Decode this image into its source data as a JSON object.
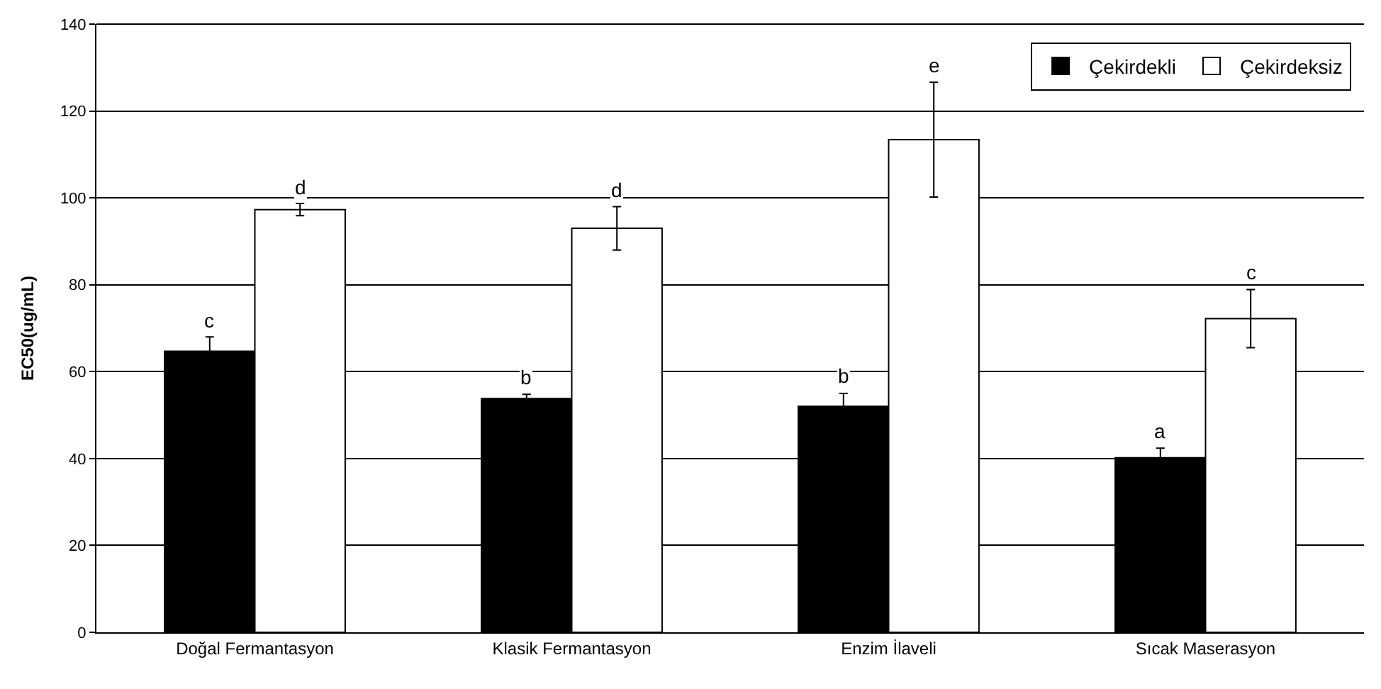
{
  "chart_data": {
    "type": "bar",
    "ylabel": "EC50(ug/mL)",
    "categories": [
      "Doğal Fermantasyon",
      "Klasik Fermantasyon",
      "Enzim İlaveli",
      "Sıcak Maserasyon"
    ],
    "series": [
      {
        "name": "Çekirdekli",
        "color": "#000000",
        "values": [
          64.7,
          53.8,
          52.0,
          40.2
        ],
        "errors": [
          3.3,
          1.0,
          3.0,
          2.2
        ],
        "value_labels": [
          "c",
          "b",
          "b",
          "a"
        ]
      },
      {
        "name": "Çekirdeksiz",
        "color": "#ffffff",
        "values": [
          97.3,
          93.0,
          113.4,
          72.2
        ],
        "errors": [
          1.4,
          5.0,
          13.2,
          6.7
        ],
        "value_labels": [
          "d",
          "d",
          "e",
          "c"
        ]
      }
    ],
    "ylim": [
      0,
      140
    ],
    "yticks": [
      0,
      20,
      40,
      60,
      80,
      100,
      120,
      140
    ],
    "grid": "y",
    "legend": "top right"
  }
}
